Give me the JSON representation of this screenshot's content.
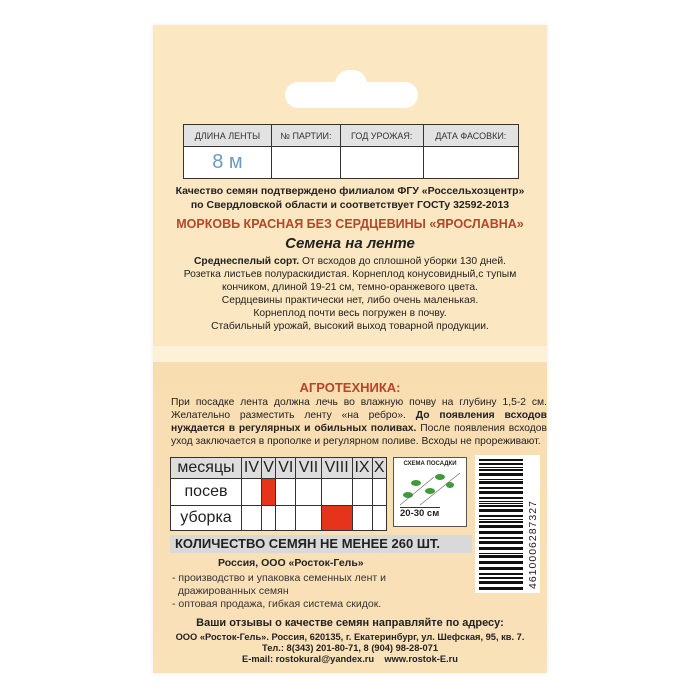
{
  "info_table": {
    "headers": [
      "ДЛИНА ЛЕНТЫ",
      "№ ПАРТИИ:",
      "ГОД УРОЖАЯ:",
      "ДАТА ФАСОВКИ:"
    ],
    "values": [
      "8 м",
      "",
      "",
      ""
    ]
  },
  "quality": [
    "Качество семян подтверждено филиалом ФГУ «Россельхозцентр»",
    "по Свердловской области и соответствует ГОСТу 32592-2013"
  ],
  "product_title": "МОРКОВЬ КРАСНАЯ БЕЗ СЕРДЦЕВИНЫ «ЯРОСЛАВНА»",
  "subtitle": "Семена на ленте",
  "description": {
    "bold": "Среднеспелый сорт.",
    "first": " От всходов до сплошной уборки 130 дней.",
    "lines": [
      "Розетка листьев полураскидистая. Корнеплод конусовидный,с тупым",
      "кончиком, длиной 19-21 см, темно-оранжевого цвета.",
      "Сердцевины практически нет, либо очень маленькая.",
      "Корнеплод почти весь погружен в почву.",
      "Стабильный урожай, высокий выход товарной продукции."
    ]
  },
  "agro": {
    "title": "АГРОТЕХНИКА:",
    "p1": "При посадке лента должна лечь во влажную почву на глубину 1,5-2 см. Желательно разместить ленту «на ребро». ",
    "p1_bold": "До появления всходов нуждается в регулярных и обильных поливах.",
    "p2": " После появления всходов уход заключается в прополке и регулярном поливе. Всходы не прореживают."
  },
  "calendar": {
    "header": "месяцы",
    "months": [
      "IV",
      "V",
      "VI",
      "VII",
      "VIII",
      "IX",
      "X"
    ],
    "rows": [
      {
        "label": "посев",
        "marked": [
          "V"
        ]
      },
      {
        "label": "уборка",
        "marked": [
          "VIII"
        ]
      }
    ],
    "mark_color": "#e6341c"
  },
  "scheme": {
    "title": "СХЕМА ПОСАДКИ",
    "spacing": "20-30 см"
  },
  "seed_count": "КОЛИЧЕСТВО СЕМЯН НЕ МЕНЕЕ 260 ШТ.",
  "barcode": "4610006287327",
  "company": {
    "name": "Россия, ООО «Росток-Гель»",
    "items": [
      "- производство и упаковка семенных лент и",
      "  дражированных семян",
      "- оптовая продажа, гибкая система скидок."
    ]
  },
  "feedback": {
    "title": "Ваши отзывы о качестве семян направляйте по адресу:",
    "address": "ООО «Росток-Гель». Россия, 620135, г. Екатеринбург, ул. Шефская, 95, кв. 7.",
    "phone": "Тел.: 8(343) 201-80-71,  8 (904) 98-28-071",
    "email": "E-mail: rostokural@yandex.ru    www.rostok-E.ru"
  }
}
